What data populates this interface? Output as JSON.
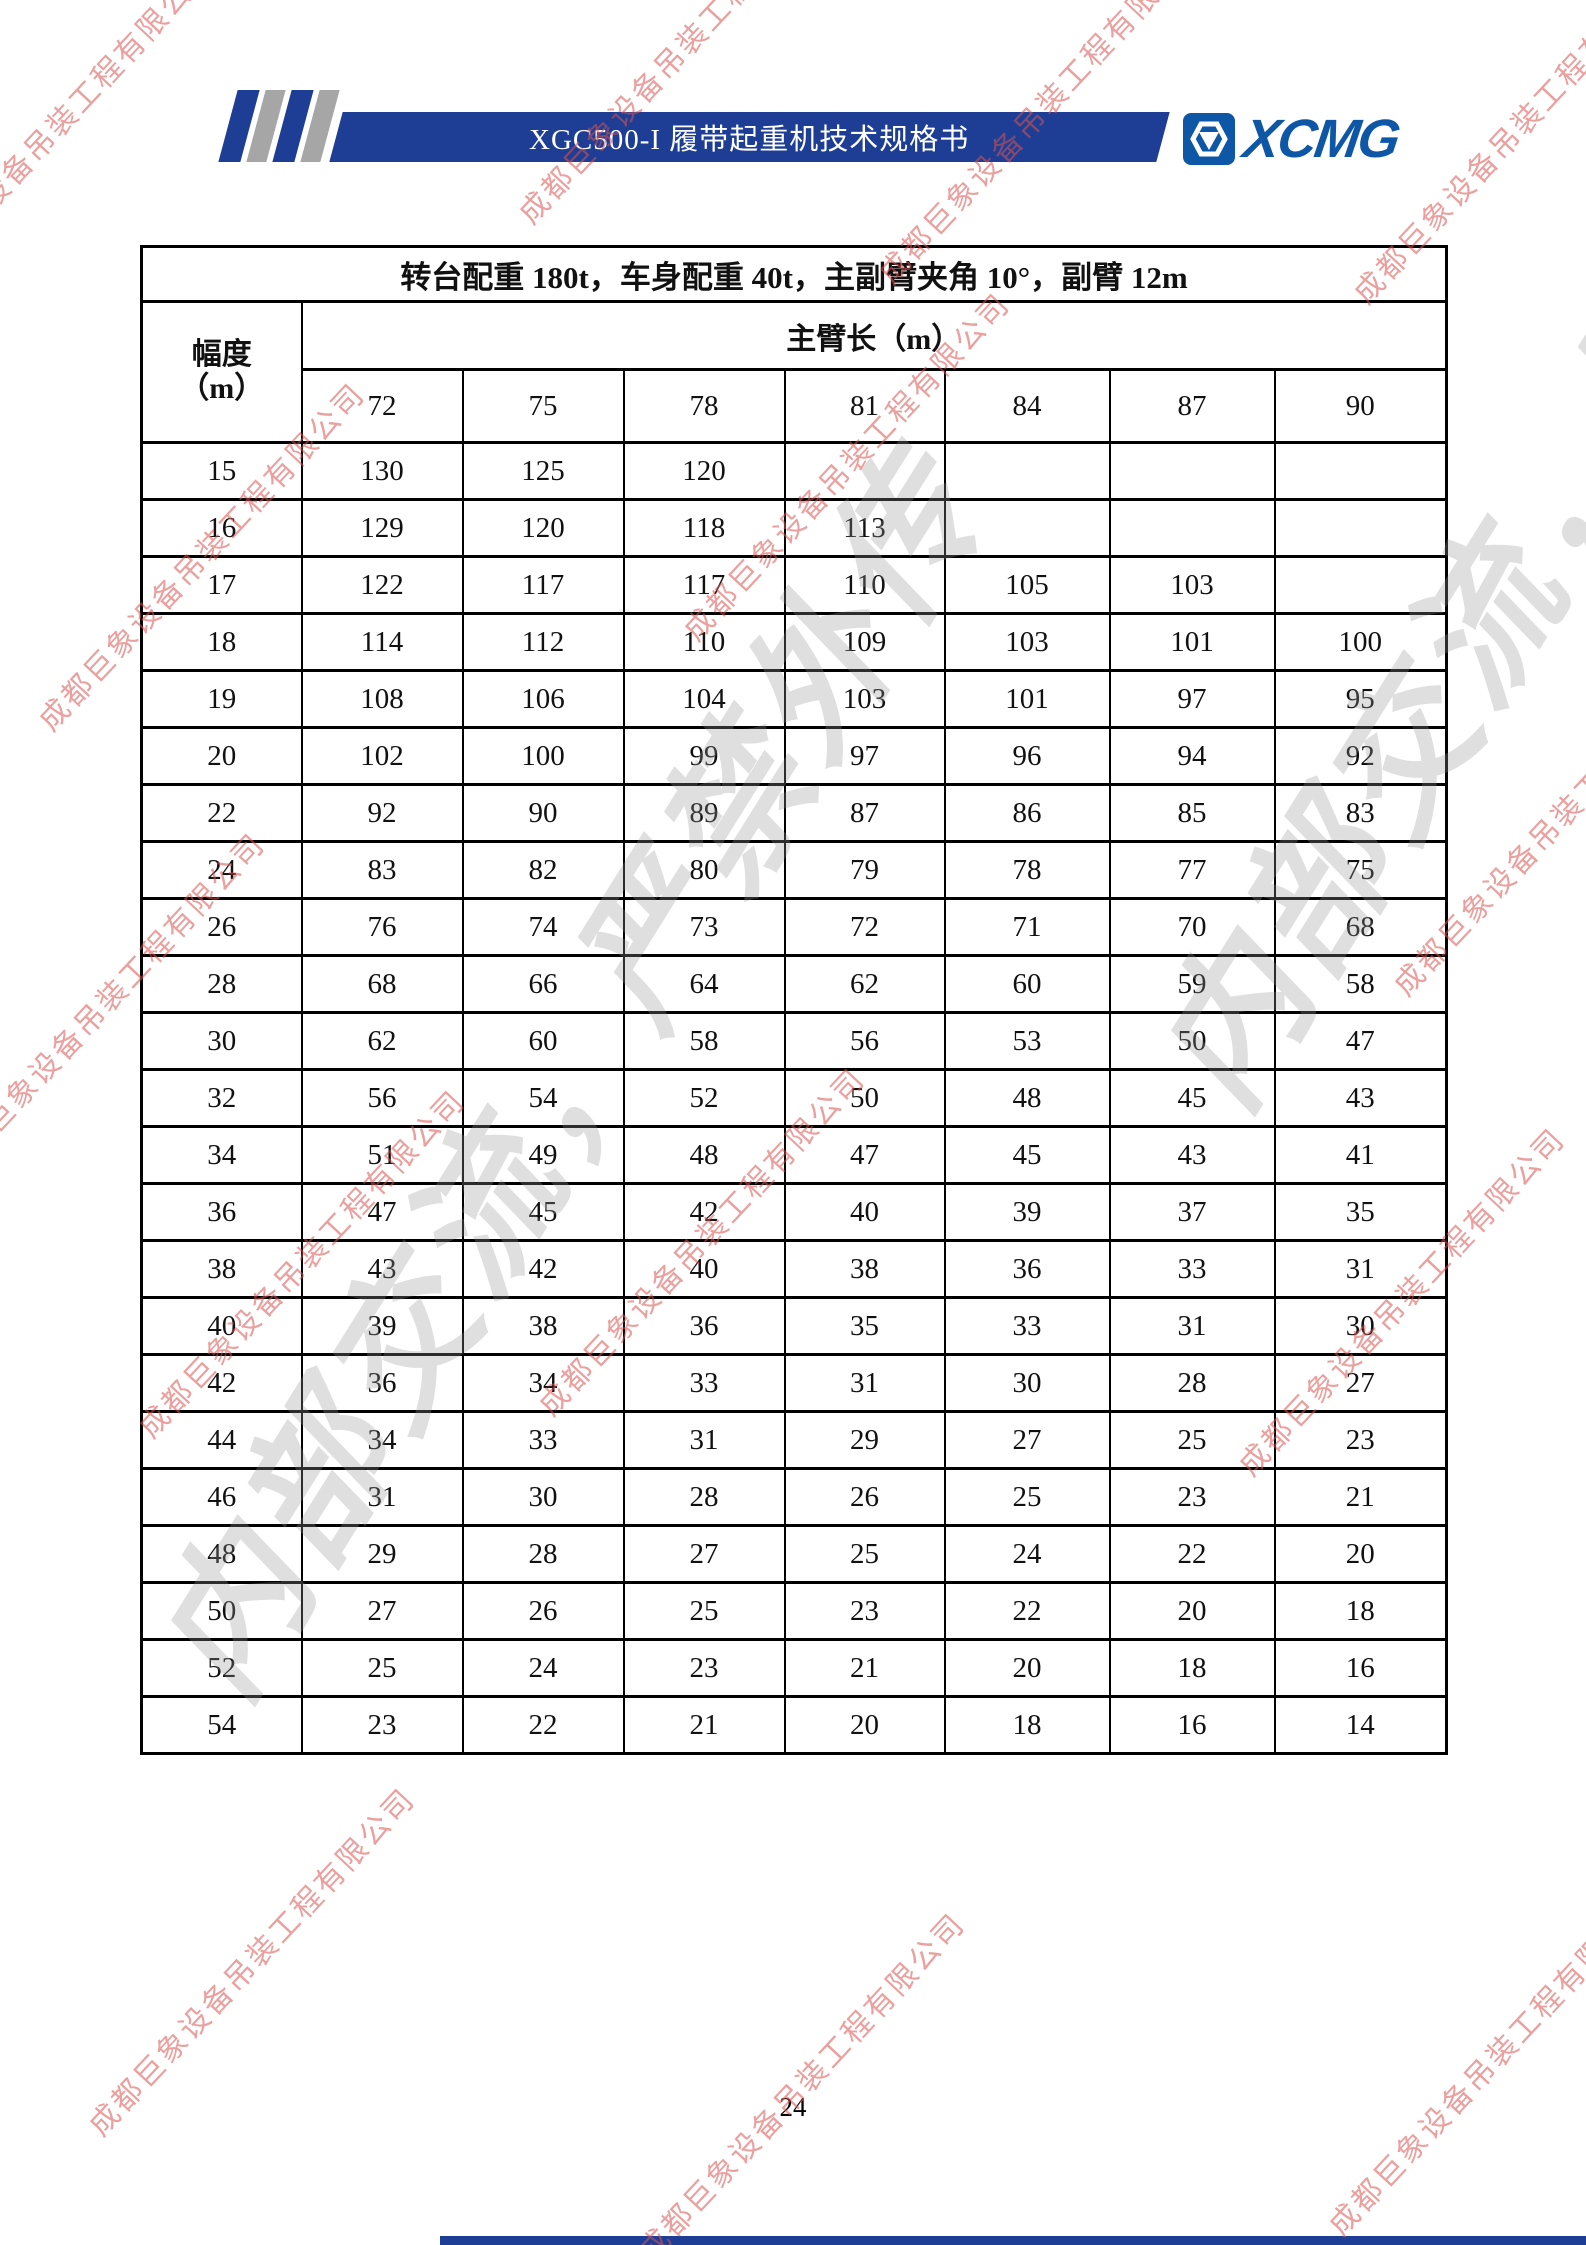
{
  "header": {
    "banner_title": "XGC500-I 履带起重机技术规格书",
    "logo_text": "XCMG"
  },
  "watermarks": {
    "company": "成都巨象设备吊装工程有限公司",
    "confidential": "内部交流，严禁外传"
  },
  "chart_data": {
    "type": "table",
    "title": "转台配重 180t，车身配重 40t，主副臂夹角 10°，副臂 12m",
    "row_header_line1": "幅度",
    "row_header_line2": "（m）",
    "col_group_header": "主臂长（m）",
    "columns": [
      "72",
      "75",
      "78",
      "81",
      "84",
      "87",
      "90"
    ],
    "rows": [
      {
        "radius": "15",
        "values": [
          "130",
          "125",
          "120",
          "",
          "",
          "",
          ""
        ]
      },
      {
        "radius": "16",
        "values": [
          "129",
          "120",
          "118",
          "113",
          "",
          "",
          ""
        ]
      },
      {
        "radius": "17",
        "values": [
          "122",
          "117",
          "117",
          "110",
          "105",
          "103",
          ""
        ]
      },
      {
        "radius": "18",
        "values": [
          "114",
          "112",
          "110",
          "109",
          "103",
          "101",
          "100"
        ]
      },
      {
        "radius": "19",
        "values": [
          "108",
          "106",
          "104",
          "103",
          "101",
          "97",
          "95"
        ]
      },
      {
        "radius": "20",
        "values": [
          "102",
          "100",
          "99",
          "97",
          "96",
          "94",
          "92"
        ]
      },
      {
        "radius": "22",
        "values": [
          "92",
          "90",
          "89",
          "87",
          "86",
          "85",
          "83"
        ]
      },
      {
        "radius": "24",
        "values": [
          "83",
          "82",
          "80",
          "79",
          "78",
          "77",
          "75"
        ]
      },
      {
        "radius": "26",
        "values": [
          "76",
          "74",
          "73",
          "72",
          "71",
          "70",
          "68"
        ]
      },
      {
        "radius": "28",
        "values": [
          "68",
          "66",
          "64",
          "62",
          "60",
          "59",
          "58"
        ]
      },
      {
        "radius": "30",
        "values": [
          "62",
          "60",
          "58",
          "56",
          "53",
          "50",
          "47"
        ]
      },
      {
        "radius": "32",
        "values": [
          "56",
          "54",
          "52",
          "50",
          "48",
          "45",
          "43"
        ]
      },
      {
        "radius": "34",
        "values": [
          "51",
          "49",
          "48",
          "47",
          "45",
          "43",
          "41"
        ]
      },
      {
        "radius": "36",
        "values": [
          "47",
          "45",
          "42",
          "40",
          "39",
          "37",
          "35"
        ]
      },
      {
        "radius": "38",
        "values": [
          "43",
          "42",
          "40",
          "38",
          "36",
          "33",
          "31"
        ]
      },
      {
        "radius": "40",
        "values": [
          "39",
          "38",
          "36",
          "35",
          "33",
          "31",
          "30"
        ]
      },
      {
        "radius": "42",
        "values": [
          "36",
          "34",
          "33",
          "31",
          "30",
          "28",
          "27"
        ]
      },
      {
        "radius": "44",
        "values": [
          "34",
          "33",
          "31",
          "29",
          "27",
          "25",
          "23"
        ]
      },
      {
        "radius": "46",
        "values": [
          "31",
          "30",
          "28",
          "26",
          "25",
          "23",
          "21"
        ]
      },
      {
        "radius": "48",
        "values": [
          "29",
          "28",
          "27",
          "25",
          "24",
          "22",
          "20"
        ]
      },
      {
        "radius": "50",
        "values": [
          "27",
          "26",
          "25",
          "23",
          "22",
          "20",
          "18"
        ]
      },
      {
        "radius": "52",
        "values": [
          "25",
          "24",
          "23",
          "21",
          "20",
          "18",
          "16"
        ]
      },
      {
        "radius": "54",
        "values": [
          "23",
          "22",
          "21",
          "20",
          "18",
          "16",
          "14"
        ]
      }
    ]
  },
  "footer": {
    "page_number": "24"
  },
  "colors": {
    "banner_blue": "#1e3e95",
    "logo_blue": "#0d57a6",
    "stripe_gray": "#a6a6a6",
    "watermark_red": "#d9534f",
    "watermark_gray": "#969696"
  }
}
